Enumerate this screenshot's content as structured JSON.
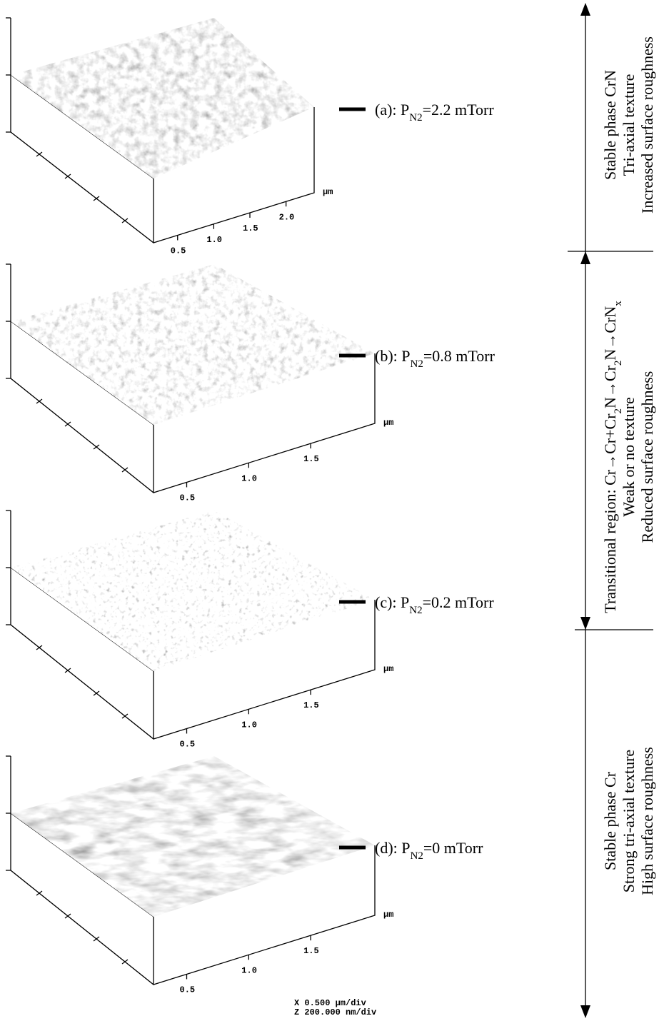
{
  "panels": [
    {
      "label_parts": [
        "(a): P",
        "N2",
        "=2.2 mTorr"
      ],
      "axis_ticks": [
        "0.5",
        "1.0",
        "1.5",
        "2.0"
      ],
      "axis_unit": "μm"
    },
    {
      "label_parts": [
        "(b): P",
        "N2",
        "=0.8 mTorr"
      ],
      "axis_ticks": [
        "0.5",
        "1.0",
        "1.5"
      ],
      "axis_unit": "μm"
    },
    {
      "label_parts": [
        "(c): P",
        "N2",
        "=0.2 mTorr"
      ],
      "axis_ticks": [
        "0.5",
        "1.0",
        "1.5"
      ],
      "axis_unit": "μm"
    },
    {
      "label_parts": [
        "(d): P",
        "N2",
        "=0 mTorr"
      ],
      "axis_ticks": [
        "0.5",
        "1.0",
        "1.5"
      ],
      "axis_unit": "μm"
    }
  ],
  "scale": [
    "X  0.500 μm/div",
    "Z  200.000 nm/div"
  ],
  "annotations": [
    {
      "lines": [
        [
          "Stable phase CrN"
        ],
        [
          "Tri-axial texture"
        ],
        [
          "Increased surface roughness"
        ]
      ]
    },
    {
      "lines": [
        [
          "Transitional region: Cr→Cr+Cr",
          "2",
          "N→Cr",
          "2",
          "N→CrN",
          "x"
        ],
        [
          "Weak or no texture"
        ],
        [
          "Reduced surface roughness"
        ]
      ]
    },
    {
      "lines": [
        [
          "Stable phase Cr"
        ],
        [
          "Strong tri-axial texture"
        ],
        [
          "High surface roughness"
        ]
      ]
    }
  ]
}
